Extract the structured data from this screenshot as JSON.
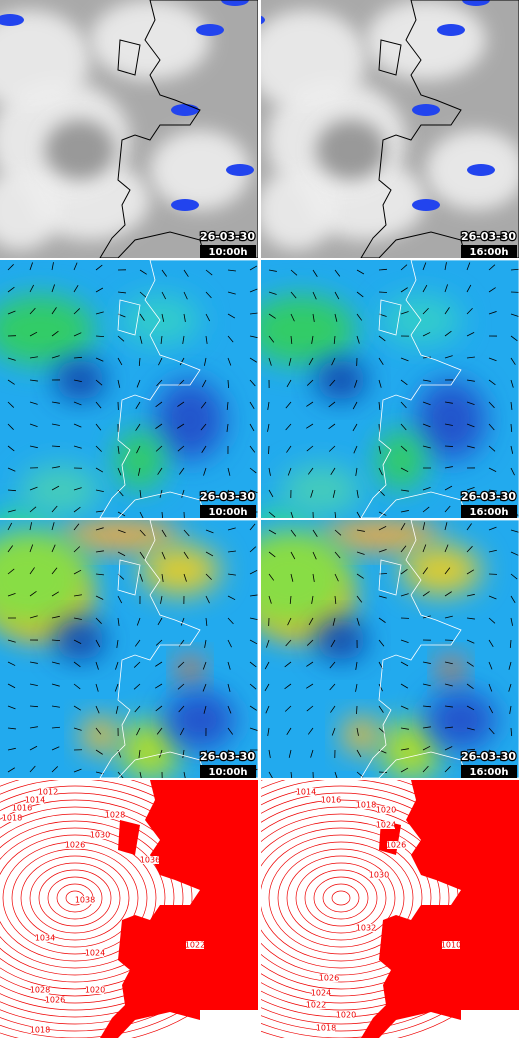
{
  "rows": [
    [
      {
        "date": "26-03-30",
        "time": "10:00h"
      },
      {
        "date": "26-03-30",
        "time": "16:00h"
      }
    ],
    [
      {
        "date": "26-03-30",
        "time": "10:00h"
      },
      {
        "date": "26-03-30",
        "time": "16:00h"
      }
    ],
    [
      {
        "date": "26-03-30",
        "time": "10:00h"
      },
      {
        "date": "26-03-30",
        "time": "16:00h"
      }
    ],
    [
      {
        "isobars": [
          "1012",
          "1014",
          "1016",
          "1018",
          "1026",
          "1028",
          "1030",
          "1038",
          "1036",
          "1034",
          "1024",
          "1028",
          "1026",
          "1020",
          "1018",
          "1022"
        ]
      },
      {
        "isobars": [
          "1014",
          "1016",
          "1018",
          "1020",
          "1026",
          "1024",
          "1030",
          "1032",
          "1010",
          "1026",
          "1024",
          "1022",
          "1020",
          "1018"
        ]
      }
    ]
  ]
}
